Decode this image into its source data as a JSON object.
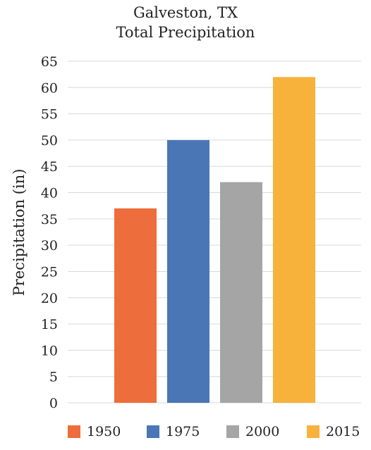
{
  "chart_data": {
    "type": "bar",
    "title": [
      "Galveston, TX",
      "Total Precipitation"
    ],
    "ylabel": "Precipitation (in)",
    "xlabel": "",
    "series": [
      {
        "name": "1950",
        "value": 37,
        "color": "#ed6d3c"
      },
      {
        "name": "1975",
        "value": 50,
        "color": "#4a76b5"
      },
      {
        "name": "2000",
        "value": 42,
        "color": "#a5a5a5"
      },
      {
        "name": "2015",
        "value": 62,
        "color": "#f7b23b"
      }
    ],
    "ylim": [
      0,
      65
    ],
    "yticks": [
      "0",
      "5",
      "10",
      "15",
      "20",
      "25",
      "30",
      "35",
      "40",
      "45",
      "50",
      "55",
      "60",
      "65"
    ],
    "grid": true,
    "legend_position": "bottom"
  }
}
